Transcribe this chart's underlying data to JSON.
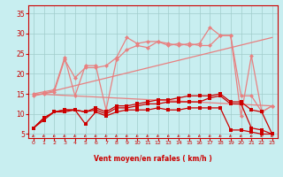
{
  "xlabel": "Vent moyen/en rafales ( km/h )",
  "xlim": [
    -0.5,
    23.5
  ],
  "ylim": [
    4,
    37
  ],
  "yticks": [
    5,
    10,
    15,
    20,
    25,
    30,
    35
  ],
  "xticks": [
    0,
    1,
    2,
    3,
    4,
    5,
    6,
    7,
    8,
    9,
    10,
    11,
    12,
    13,
    14,
    15,
    16,
    17,
    18,
    19,
    20,
    21,
    22,
    23
  ],
  "bg_color": "#c8eef0",
  "grid_color": "#a0cccc",
  "line_dark_red": {
    "color": "#cc0000",
    "x": [
      0,
      1,
      2,
      3,
      4,
      5,
      6,
      7,
      8,
      9,
      10,
      11,
      12,
      13,
      14,
      15,
      16,
      17,
      18,
      19,
      20,
      21,
      22,
      23
    ],
    "y": [
      6.5,
      8.5,
      10.5,
      10.5,
      11,
      7.5,
      10.5,
      9.5,
      10.5,
      11,
      11,
      11,
      11.5,
      11,
      11,
      11.5,
      11.5,
      11.5,
      11.5,
      6,
      6,
      5.5,
      5,
      5
    ]
  },
  "line_med_red1": {
    "color": "#cc0000",
    "x": [
      0,
      1,
      2,
      3,
      4,
      5,
      6,
      7,
      8,
      9,
      10,
      11,
      12,
      13,
      14,
      15,
      16,
      17,
      18,
      19,
      20,
      21,
      22,
      23
    ],
    "y": [
      6.5,
      9,
      10.5,
      11,
      11,
      10.5,
      11,
      10,
      11.5,
      11.5,
      12,
      12.5,
      12.5,
      13,
      13,
      13,
      13,
      14,
      14.5,
      12.5,
      12.5,
      6.5,
      6,
      5
    ]
  },
  "line_med_red2": {
    "color": "#cc0000",
    "x": [
      0,
      1,
      2,
      3,
      4,
      5,
      6,
      7,
      8,
      9,
      10,
      11,
      12,
      13,
      14,
      15,
      16,
      17,
      18,
      19,
      20,
      21,
      22,
      23
    ],
    "y": [
      6.5,
      9,
      10.5,
      11,
      11,
      10.5,
      11.5,
      10.5,
      12,
      12,
      12.5,
      13,
      13.5,
      13.5,
      14,
      14.5,
      14.5,
      14.5,
      15,
      13,
      13,
      11,
      10.5,
      5
    ]
  },
  "line_light1": {
    "color": "#e88080",
    "x": [
      0,
      1,
      2,
      3,
      4,
      5,
      6,
      7,
      8,
      9,
      10,
      11,
      12,
      13,
      14,
      15,
      16,
      17,
      18,
      19,
      20,
      21,
      22,
      23
    ],
    "y": [
      14.5,
      15,
      15.5,
      23.5,
      19,
      21.5,
      21.5,
      22,
      24,
      29,
      27.5,
      28,
      28,
      27,
      27.5,
      27,
      27.5,
      31.5,
      29.5,
      29.5,
      9.5,
      24.5,
      10.5,
      12
    ]
  },
  "line_light2": {
    "color": "#e88080",
    "x": [
      0,
      1,
      2,
      3,
      4,
      5,
      6,
      7,
      8,
      9,
      10,
      11,
      12,
      13,
      14,
      15,
      16,
      17,
      18,
      19,
      20,
      21,
      22,
      23
    ],
    "y": [
      15,
      15.5,
      16,
      24,
      14.5,
      22,
      22,
      11,
      23.5,
      26,
      27,
      26.5,
      28,
      27.5,
      27,
      27.5,
      27,
      27,
      29.5,
      29.5,
      14.5,
      14.5,
      10.5,
      12
    ]
  },
  "line_trend_up": {
    "color": "#e88080",
    "x": [
      0,
      23
    ],
    "y": [
      14.5,
      29.0
    ]
  },
  "line_trend_down": {
    "color": "#e88080",
    "x": [
      0,
      23
    ],
    "y": [
      15.0,
      12.0
    ]
  },
  "arrow_color": "#cc0000"
}
